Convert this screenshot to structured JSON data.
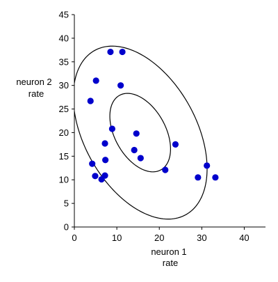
{
  "chart_data": {
    "type": "scatter",
    "title": "",
    "xlabel_lines": [
      "neuron 1",
      "rate"
    ],
    "ylabel_lines": [
      "neuron 2",
      "rate"
    ],
    "xlim": [
      0,
      45
    ],
    "ylim": [
      0,
      45
    ],
    "xticks": [
      0,
      10,
      20,
      30,
      40
    ],
    "yticks": [
      0,
      5,
      10,
      15,
      20,
      25,
      30,
      35,
      40,
      45
    ],
    "grid": false,
    "legend": false,
    "point_color": "#0000cc",
    "ellipse_color": "#000000",
    "points": [
      {
        "x": 8.5,
        "y": 37.1
      },
      {
        "x": 11.3,
        "y": 37.1
      },
      {
        "x": 5.1,
        "y": 31.0
      },
      {
        "x": 10.9,
        "y": 30.0
      },
      {
        "x": 3.8,
        "y": 26.7
      },
      {
        "x": 8.9,
        "y": 20.8
      },
      {
        "x": 14.6,
        "y": 19.8
      },
      {
        "x": 7.2,
        "y": 17.7
      },
      {
        "x": 23.8,
        "y": 17.5
      },
      {
        "x": 14.1,
        "y": 16.3
      },
      {
        "x": 15.6,
        "y": 14.6
      },
      {
        "x": 7.3,
        "y": 14.2
      },
      {
        "x": 4.2,
        "y": 13.4
      },
      {
        "x": 31.2,
        "y": 13.0
      },
      {
        "x": 21.4,
        "y": 12.1
      },
      {
        "x": 4.9,
        "y": 10.8
      },
      {
        "x": 7.2,
        "y": 10.9
      },
      {
        "x": 6.4,
        "y": 10.1
      },
      {
        "x": 29.1,
        "y": 10.5
      },
      {
        "x": 33.2,
        "y": 10.5
      }
    ],
    "ellipses": [
      {
        "cx": 15.5,
        "cy": 20.0,
        "a": 9.3,
        "b": 5.8,
        "angle_deg": -55
      },
      {
        "cx": 15.5,
        "cy": 20.0,
        "a": 20.5,
        "b": 12.8,
        "angle_deg": -55
      }
    ]
  }
}
